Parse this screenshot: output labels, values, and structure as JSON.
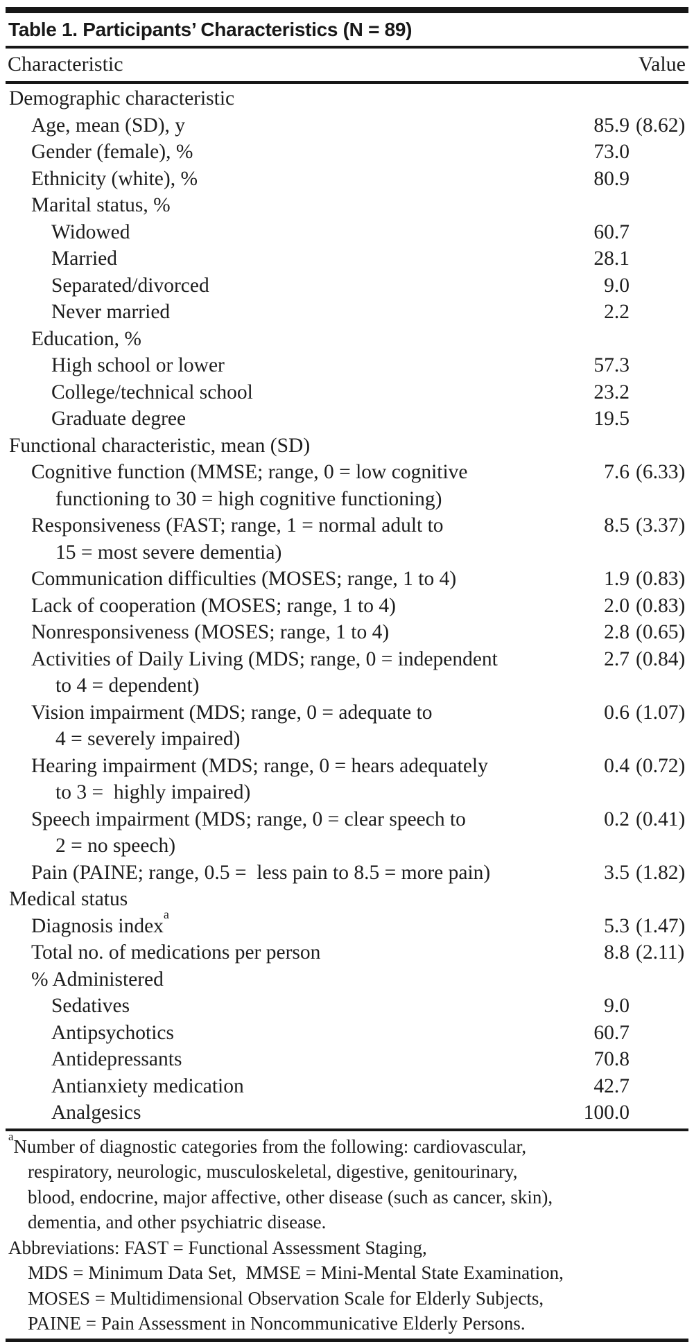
{
  "table": {
    "title": "Table 1. Participants’ Characteristics (N = 89)",
    "columns": {
      "characteristic": "Characteristic",
      "value": "Value"
    },
    "colors": {
      "text": "#1d1d1d",
      "rule": "#171717",
      "background": "#ffffff"
    },
    "rows": [
      {
        "label": "Demographic characteristic",
        "indent": 0
      },
      {
        "label": "Age, mean (SD), y",
        "indent": 1,
        "num": "85.9",
        "sd": "(8.62)"
      },
      {
        "label": "Gender (female), %",
        "indent": 1,
        "num": "73.0"
      },
      {
        "label": "Ethnicity (white), %",
        "indent": 1,
        "num": "80.9"
      },
      {
        "label": "Marital status, %",
        "indent": 1
      },
      {
        "label": "Widowed",
        "indent": 2,
        "num": "60.7"
      },
      {
        "label": "Married",
        "indent": 2,
        "num": "28.1"
      },
      {
        "label": "Separated/divorced",
        "indent": 2,
        "num": "9.0"
      },
      {
        "label": "Never married",
        "indent": 2,
        "num": "2.2"
      },
      {
        "label": "Education, %",
        "indent": 1
      },
      {
        "label": "High school or lower",
        "indent": 2,
        "num": "57.3"
      },
      {
        "label": "College/technical school",
        "indent": 2,
        "num": "23.2"
      },
      {
        "label": "Graduate degree",
        "indent": 2,
        "num": "19.5"
      },
      {
        "label": "Functional characteristic, mean (SD)",
        "indent": 0
      },
      {
        "label": "Cognitive function (MMSE; range, 0 = low cognitive",
        "label2": "functioning to 30 = high cognitive functioning)",
        "indent": 1,
        "num": "7.6",
        "sd": "(6.33)"
      },
      {
        "label": "Responsiveness (FAST; range, 1 = normal adult to",
        "label2": "15 = most severe dementia)",
        "indent": 1,
        "num": "8.5",
        "sd": "(3.37)"
      },
      {
        "label": "Communication difficulties (MOSES; range, 1 to 4)",
        "indent": 1,
        "num": "1.9",
        "sd": "(0.83)"
      },
      {
        "label": "Lack of cooperation (MOSES; range, 1 to 4)",
        "indent": 1,
        "num": "2.0",
        "sd": "(0.83)"
      },
      {
        "label": "Nonresponsiveness (MOSES; range, 1 to 4)",
        "indent": 1,
        "num": "2.8",
        "sd": "(0.65)"
      },
      {
        "label": "Activities of Daily Living (MDS; range, 0 = independent",
        "label2": "to 4 = dependent)",
        "indent": 1,
        "num": "2.7",
        "sd": "(0.84)"
      },
      {
        "label": "Vision impairment (MDS; range, 0 = adequate to",
        "label2": "4 = severely impaired)",
        "indent": 1,
        "num": "0.6",
        "sd": "(1.07)"
      },
      {
        "label": "Hearing impairment (MDS; range, 0 = hears adequately",
        "label2": "to 3 =  highly impaired)",
        "indent": 1,
        "num": "0.4",
        "sd": "(0.72)"
      },
      {
        "label": "Speech impairment (MDS; range, 0 = clear speech to",
        "label2": "2 = no speech)",
        "indent": 1,
        "num": "0.2",
        "sd": "(0.41)"
      },
      {
        "label": "Pain (PAINE; range, 0.5 =  less pain to 8.5 = more pain)",
        "indent": 1,
        "num": "3.5",
        "sd": "(1.82)"
      },
      {
        "label": "Medical status",
        "indent": 0
      },
      {
        "label": "Diagnosis index",
        "sup": "a",
        "indent": 1,
        "num": "5.3",
        "sd": "(1.47)"
      },
      {
        "label": "Total no. of medications per person",
        "indent": 1,
        "num": "8.8",
        "sd": "(2.11)"
      },
      {
        "label": "% Administered",
        "indent": 1
      },
      {
        "label": "Sedatives",
        "indent": 2,
        "num": "9.0"
      },
      {
        "label": "Antipsychotics",
        "indent": 2,
        "num": "60.7"
      },
      {
        "label": "Antidepressants",
        "indent": 2,
        "num": "70.8"
      },
      {
        "label": "Antianxiety medication",
        "indent": 2,
        "num": "42.7"
      },
      {
        "label": "Analgesics",
        "indent": 2,
        "num": "100.0"
      }
    ],
    "footnotes": [
      {
        "sup": "a",
        "text": "Number of diagnostic categories from the following: cardiovascular,",
        "indent": 0
      },
      {
        "text": "respiratory, neurologic, musculoskeletal, digestive, genitourinary,",
        "indent": 1
      },
      {
        "text": "blood, endocrine, major affective, other disease (such as cancer, skin),",
        "indent": 1
      },
      {
        "text": "dementia, and other psychiatric disease.",
        "indent": 1
      },
      {
        "text": "Abbreviations: FAST = Functional Assessment Staging,",
        "indent": 0
      },
      {
        "text": "MDS = Minimum Data Set,  MMSE = Mini-Mental State Examination,",
        "indent": 1
      },
      {
        "text": "MOSES = Multidimensional Observation Scale for Elderly Subjects,",
        "indent": 1
      },
      {
        "text": "PAINE = Pain Assessment in Noncommunicative Elderly Persons.",
        "indent": 1
      }
    ]
  }
}
